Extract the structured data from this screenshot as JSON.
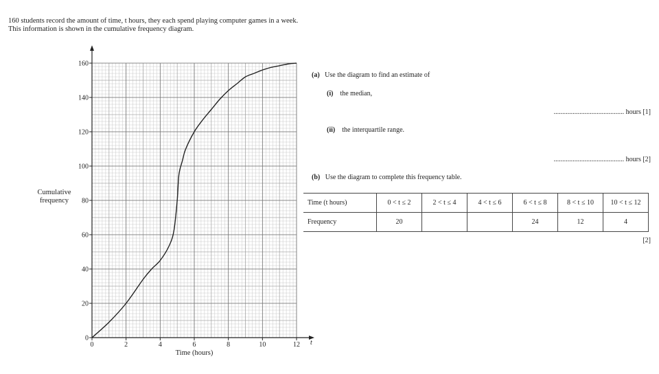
{
  "intro": {
    "line1": "160 students record the amount of time, t hours, they each spend playing computer games in a week.",
    "line2": "This information is shown in the cumulative frequency diagram."
  },
  "chart_data": {
    "type": "line",
    "title": "",
    "xlabel": "Time (hours)",
    "x_axis_symbol": "t",
    "ylabel_line1": "Cumulative",
    "ylabel_line2": "frequency",
    "xlim": [
      0,
      12
    ],
    "ylim": [
      0,
      160
    ],
    "x_ticks": [
      0,
      2,
      4,
      6,
      8,
      10,
      12
    ],
    "y_ticks": [
      0,
      20,
      40,
      60,
      80,
      100,
      120,
      140,
      160
    ],
    "grid": true,
    "series": [
      {
        "x": [
          0,
          1,
          2,
          3,
          3.5,
          4,
          4.5,
          4.8,
          5.0,
          5.1,
          5.3,
          5.5,
          6,
          6.5,
          7,
          7.5,
          8,
          8.5,
          9,
          9.5,
          10,
          10.5,
          11,
          11.5,
          12
        ],
        "y": [
          0,
          9,
          20,
          34,
          40,
          45,
          53,
          62,
          80,
          95,
          103,
          110,
          120,
          127,
          133,
          139,
          144,
          148,
          152,
          154,
          156,
          157.5,
          158.5,
          159.5,
          160
        ]
      }
    ]
  },
  "questions": {
    "a_label": "(a)",
    "a_text": "Use the diagram to find an estimate of",
    "ai_label": "(i)",
    "ai_text": "the median,",
    "ai_answer": "......................................... hours [1]",
    "aii_label": "(ii)",
    "aii_text": "the interquartile range.",
    "aii_answer": "......................................... hours [2]",
    "b_label": "(b)",
    "b_text": "Use the diagram to complete this frequency table.",
    "b_mark": "[2]"
  },
  "table": {
    "time_label": "Time (t hours)",
    "freq_label": "Frequency",
    "intervals": [
      "0 < t ≤ 2",
      "2 < t ≤ 4",
      "4 < t ≤ 6",
      "6 < t ≤ 8",
      "8 < t ≤ 10",
      "10 < t ≤ 12"
    ],
    "frequencies": [
      "20",
      "",
      "",
      "24",
      "12",
      "4"
    ]
  }
}
